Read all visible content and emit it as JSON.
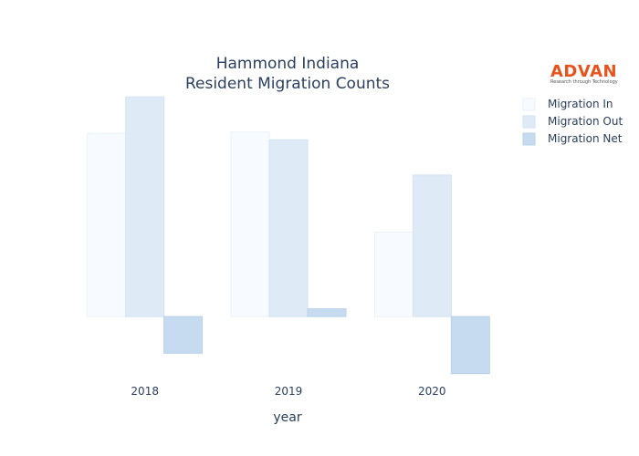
{
  "logo": {
    "name": "ADVAN",
    "tagline": "Research through Technology",
    "color": "#e8521c"
  },
  "chart_data": {
    "type": "bar",
    "title_lines": [
      "Hammond Indiana",
      "Resident Migration Counts"
    ],
    "xlabel": "year",
    "ylabel": "",
    "categories": [
      "2018",
      "2019",
      "2020"
    ],
    "series": [
      {
        "name": "Migration In",
        "values": [
          1300,
          1310,
          600
        ],
        "color": "#f7fbff",
        "stroke": "#eaf2fb"
      },
      {
        "name": "Migration Out",
        "values": [
          1560,
          1255,
          1005
        ],
        "color": "#deebf7",
        "stroke": "#d2e3f3"
      },
      {
        "name": "Migration Net",
        "values": [
          -260,
          55,
          -405
        ],
        "color": "#c6dbef",
        "stroke": "#b8d1ea"
      }
    ],
    "ylim": [
      -420,
      1600
    ],
    "grid": false,
    "show_y_ticks": false,
    "legend_position": "top-right"
  }
}
